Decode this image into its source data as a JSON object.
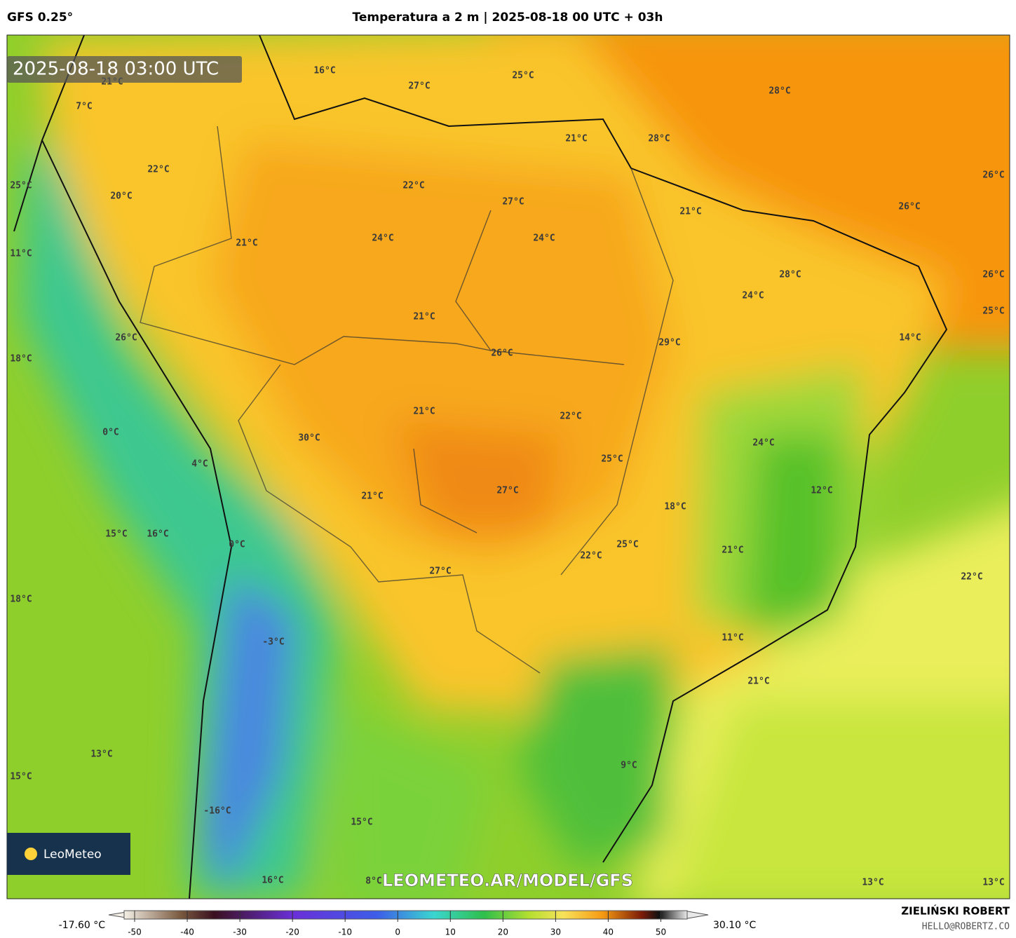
{
  "header": {
    "model": "GFS 0.25°",
    "title": "Temperatura a 2 m | 2025-08-18 00 UTC + 03h"
  },
  "map": {
    "timestamp": "2025-08-18 03:00 UTC",
    "watermark": "LEOMETEO.AR/MODEL/GFS",
    "logo": "LeoMeteo",
    "labels": [
      "16°C",
      "27°C",
      "25°C",
      "28°C",
      "21°C",
      "7°C",
      "21°C",
      "28°C",
      "22°C",
      "22°C",
      "26°C",
      "25°C",
      "20°C",
      "27°C",
      "21°C",
      "26°C",
      "21°C",
      "24°C",
      "24°C",
      "11°C",
      "28°C",
      "26°C",
      "24°C",
      "25°C",
      "21°C",
      "26°C",
      "29°C",
      "14°C",
      "18°C",
      "26°C",
      "21°C",
      "22°C",
      "0°C",
      "30°C",
      "24°C",
      "25°C",
      "4°C",
      "27°C",
      "12°C",
      "21°C",
      "18°C",
      "15°C",
      "16°C",
      "0°C",
      "25°C",
      "22°C",
      "21°C",
      "27°C",
      "22°C",
      "18°C",
      "11°C",
      "-3°C",
      "21°C",
      "13°C",
      "9°C",
      "15°C",
      "-16°C",
      "15°C",
      "16°C",
      "8°C",
      "13°C",
      "13°C"
    ]
  },
  "colorbar": {
    "min_label": "-17.60 °C",
    "max_label": "30.10 °C",
    "xlim": [
      -52,
      55
    ],
    "ticks": [
      -50,
      -40,
      -30,
      -20,
      -10,
      0,
      10,
      20,
      30,
      40,
      50
    ]
  },
  "credits": {
    "author": "ZIELIŃSKI ROBERT",
    "email": "HELLO@ROBERTZ.CO"
  }
}
